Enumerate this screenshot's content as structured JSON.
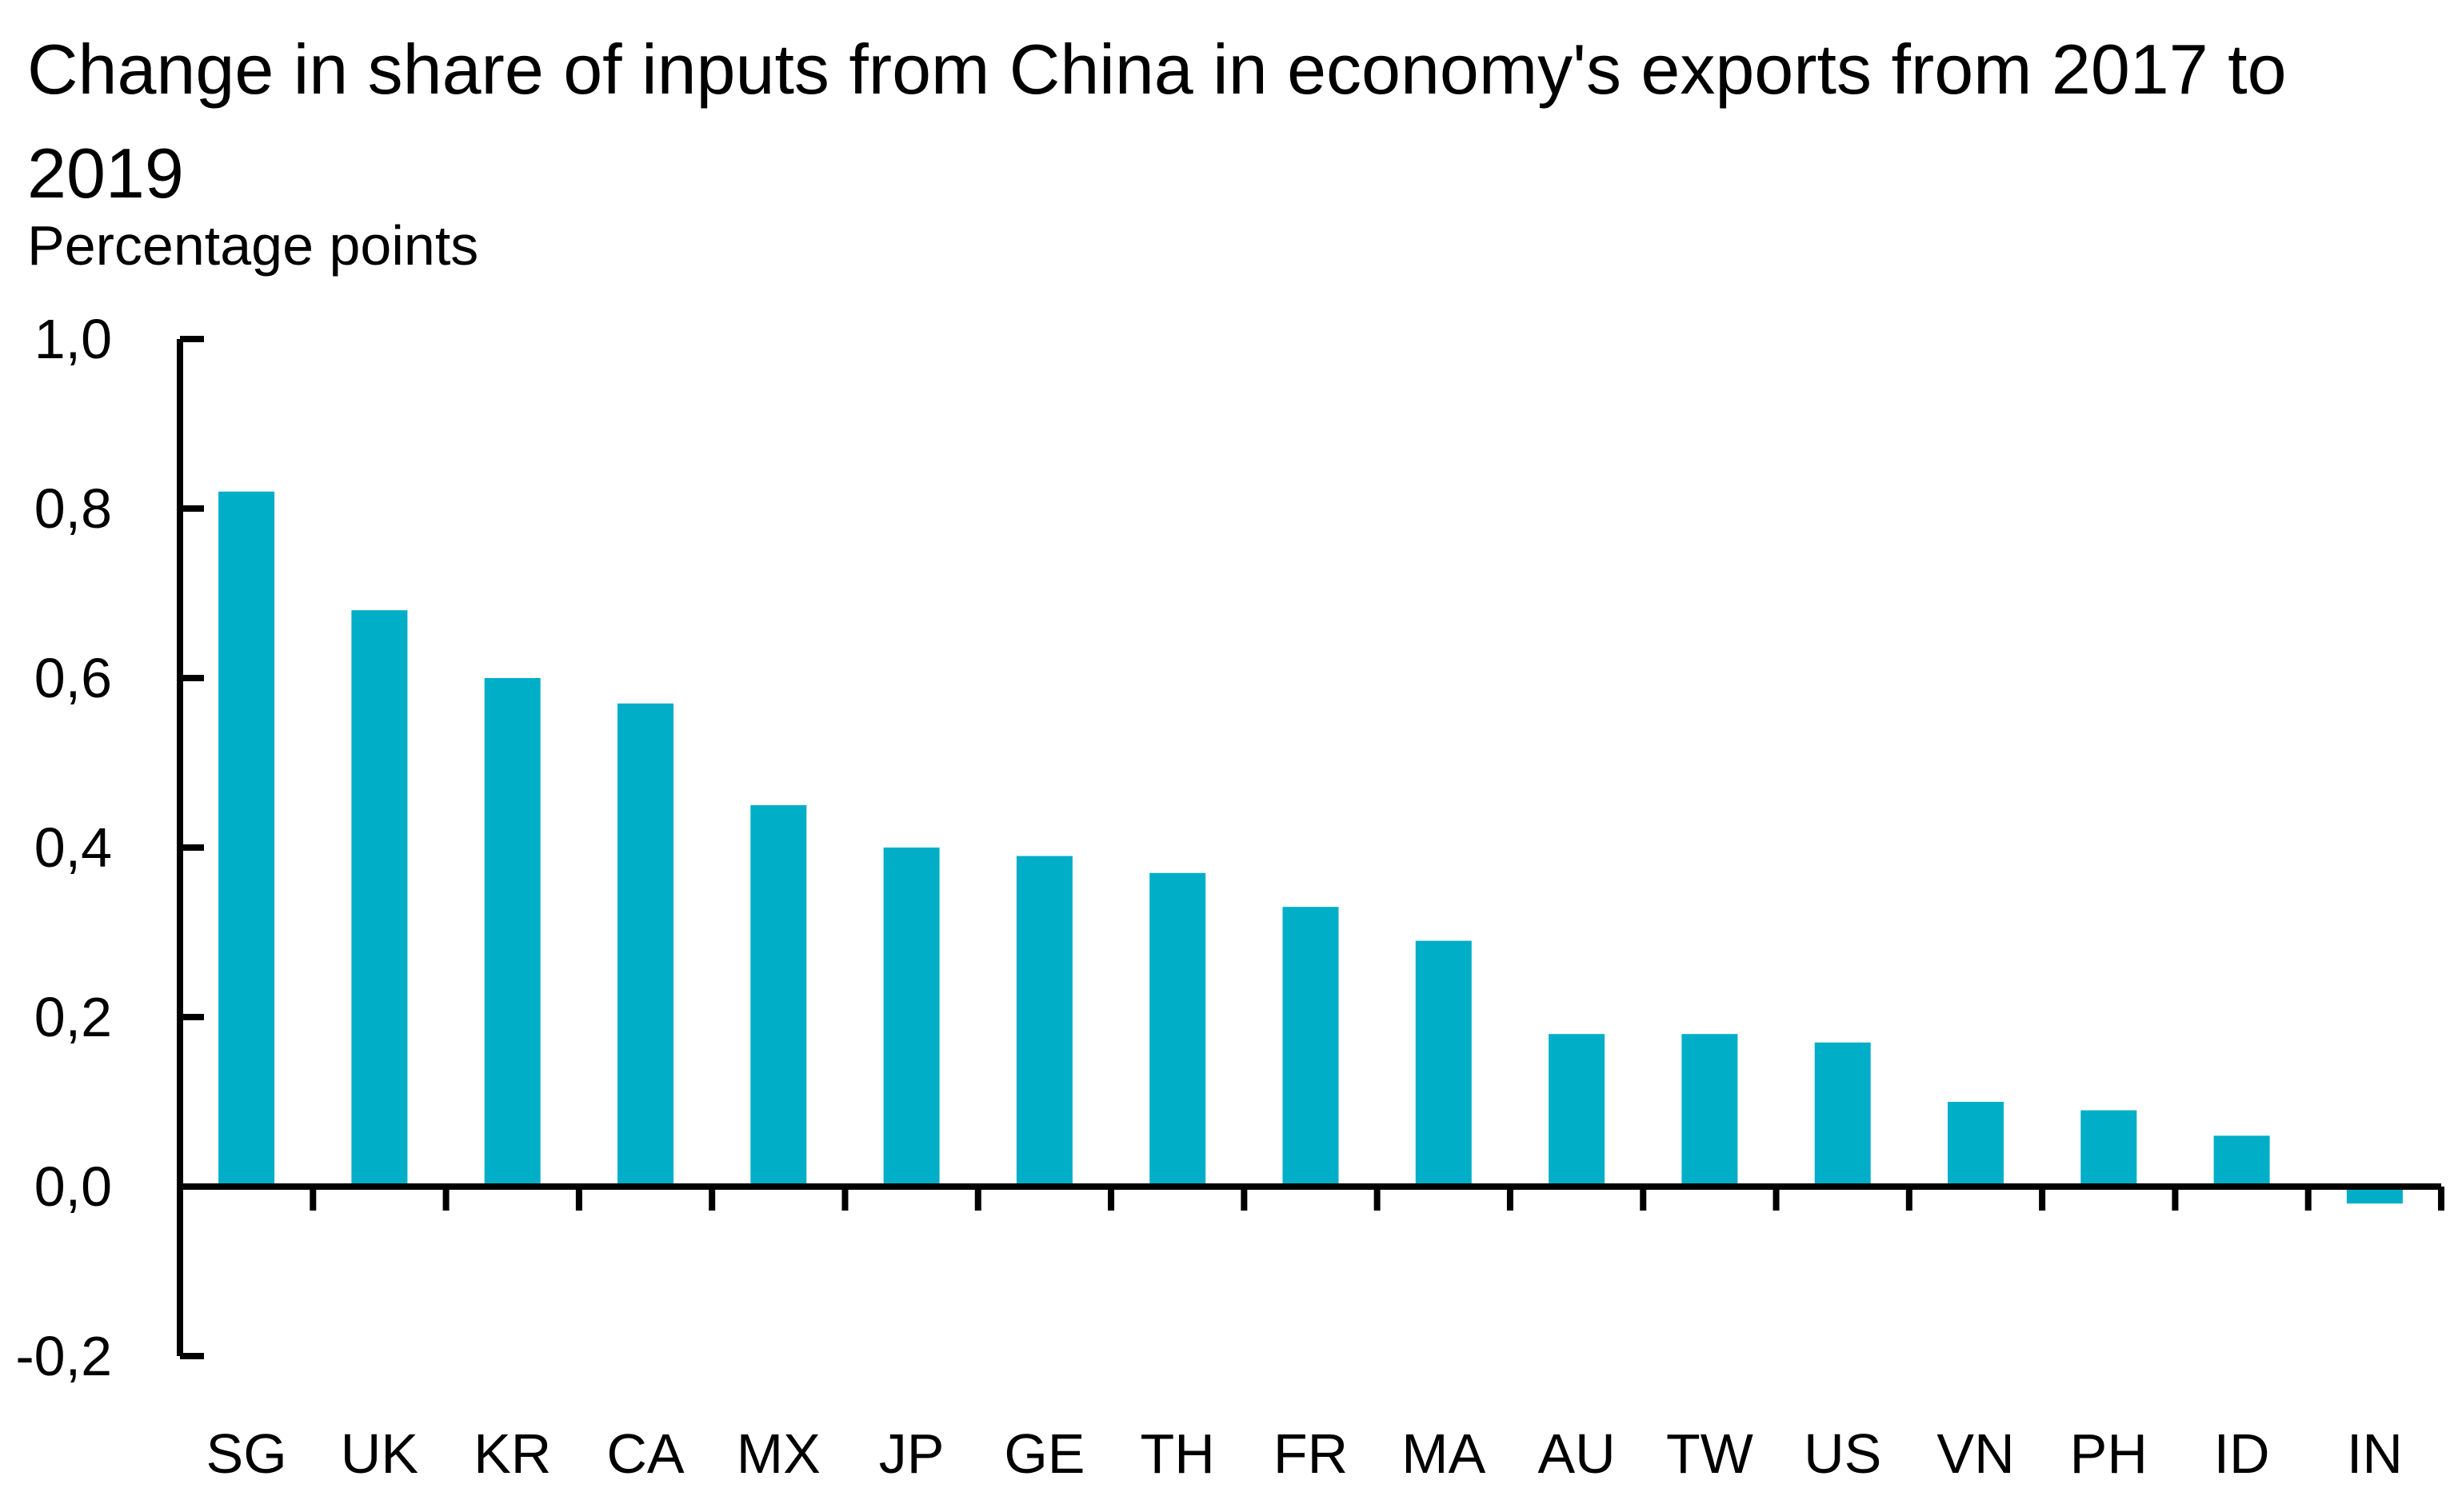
{
  "chart_data": {
    "type": "bar",
    "title": "Change in share of inputs from China in economy's exports from 2017 to 2019",
    "ylabel": "Percentage points",
    "xlabel": "",
    "categories": [
      "SG",
      "UK",
      "KR",
      "CA",
      "MX",
      "JP",
      "GE",
      "TH",
      "FR",
      "MA",
      "AU",
      "TW",
      "US",
      "VN",
      "PH",
      "ID",
      "IN"
    ],
    "values": [
      0.82,
      0.68,
      0.6,
      0.57,
      0.45,
      0.4,
      0.39,
      0.37,
      0.33,
      0.29,
      0.18,
      0.18,
      0.17,
      0.1,
      0.09,
      0.06,
      -0.02
    ],
    "ylim": [
      -0.2,
      1.0
    ],
    "yticks": [
      1.0,
      0.8,
      0.6,
      0.4,
      0.2,
      0.0,
      -0.2
    ],
    "ytick_labels": [
      "1,0",
      "0,8",
      "0,6",
      "0,4",
      "0,2",
      "0,0",
      "-0,2"
    ],
    "grid": false,
    "legend": "none",
    "bar_color": "#00AEC7",
    "axis_color": "#000000"
  }
}
